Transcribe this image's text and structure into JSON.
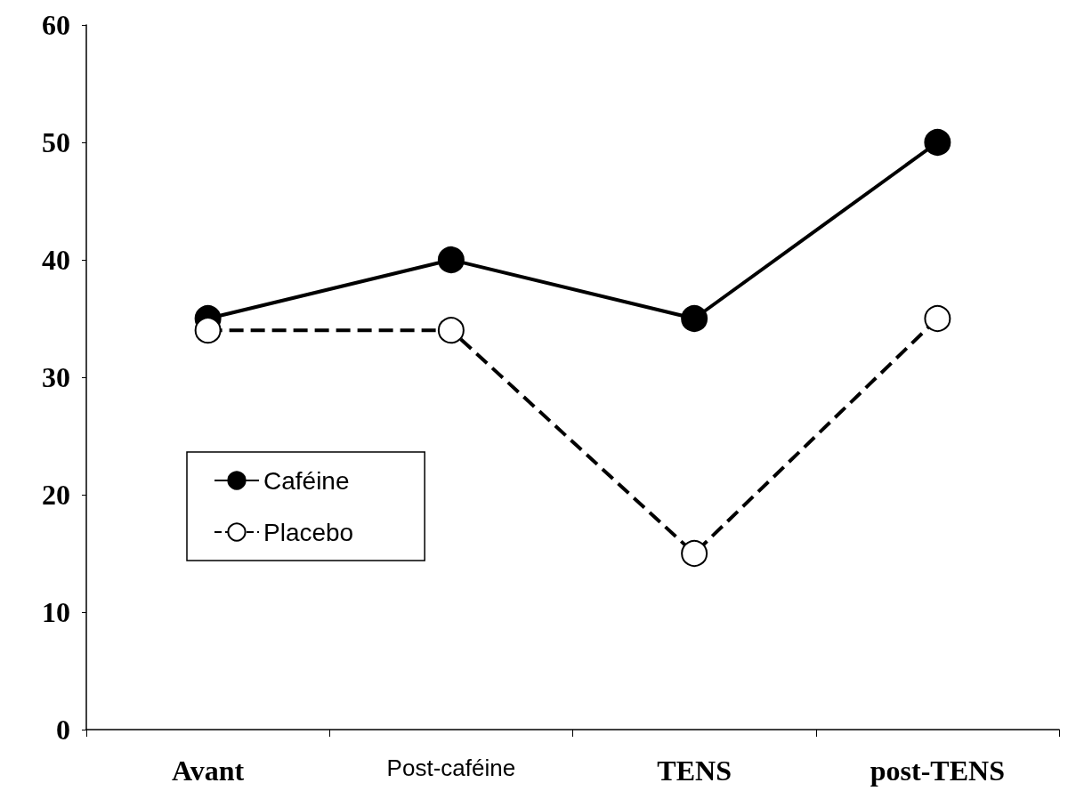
{
  "chart_data": {
    "type": "line",
    "categories": [
      "Avant",
      "Post-caféine",
      "TENS",
      "post-TENS"
    ],
    "series": [
      {
        "name": "Caféine",
        "color": "#000000",
        "values": [
          35,
          40,
          35,
          50
        ],
        "marker": "circle",
        "line_style": "solid"
      },
      {
        "name": "Placebo",
        "color": "#000000",
        "values": [
          34,
          34,
          15,
          35
        ],
        "marker": "circle",
        "line_style": "dashed"
      }
    ],
    "ylim": [
      0,
      60
    ],
    "yticks": [
      0,
      10,
      20,
      30,
      40,
      50,
      60
    ],
    "grid": false,
    "legend": "left"
  }
}
